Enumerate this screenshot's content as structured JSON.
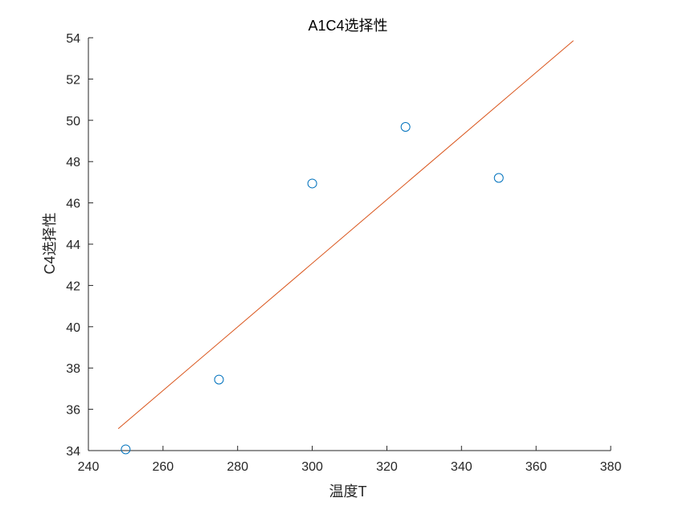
{
  "chart_data": {
    "type": "scatter",
    "title": "A1C4选择性",
    "xlabel": "温度T",
    "ylabel": "C4选择性",
    "xlim": [
      240,
      380
    ],
    "ylim": [
      34,
      54
    ],
    "xticks": [
      240,
      260,
      280,
      300,
      320,
      340,
      360,
      380
    ],
    "yticks": [
      34,
      36,
      38,
      40,
      42,
      44,
      46,
      48,
      50,
      52,
      54
    ],
    "grid": false,
    "series": [
      {
        "type": "scatter",
        "marker": "circle-open",
        "color": "#0072BD",
        "points": [
          {
            "x": 250,
            "y": 34.06
          },
          {
            "x": 275,
            "y": 37.44
          },
          {
            "x": 300,
            "y": 46.94
          },
          {
            "x": 325,
            "y": 49.68
          },
          {
            "x": 350,
            "y": 47.21
          }
        ]
      },
      {
        "type": "line",
        "color": "#D95319",
        "points": [
          {
            "x": 248,
            "y": 35.06
          },
          {
            "x": 370,
            "y": 53.86
          }
        ]
      }
    ]
  }
}
